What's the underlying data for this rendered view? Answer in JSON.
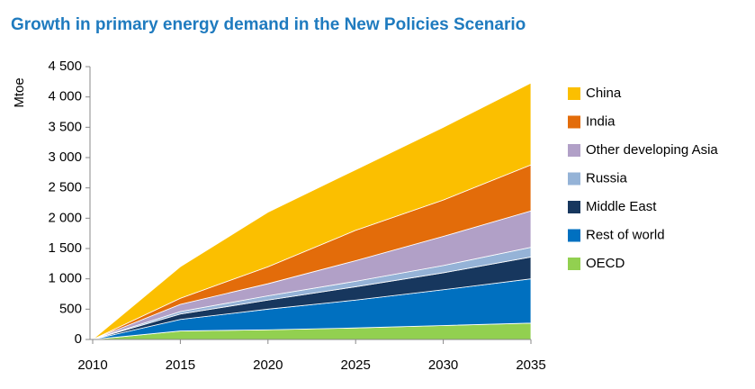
{
  "chart_data": {
    "type": "stacked-area",
    "title": "Growth in primary energy demand in the New Policies Scenario",
    "y_label": "Mtoe",
    "x": [
      2010,
      2015,
      2020,
      2025,
      2030,
      2035
    ],
    "xlim": [
      2010,
      2035
    ],
    "xticks": [
      2010,
      2015,
      2020,
      2025,
      2030,
      2035
    ],
    "ylim": [
      0,
      4500
    ],
    "yticks": [
      0,
      500,
      {
        "value": 1000,
        "label": "1 000"
      },
      {
        "value": 1500,
        "label": "1 500"
      },
      {
        "value": 2000,
        "label": "2 000"
      },
      {
        "value": 2500,
        "label": "2 500"
      },
      {
        "value": 3000,
        "label": "3 000"
      },
      {
        "value": 3500,
        "label": "3 500"
      },
      {
        "value": 4000,
        "label": "4 000"
      },
      {
        "value": 4500,
        "label": "4 500"
      }
    ],
    "series": [
      {
        "name": "China",
        "color": "#fbbf00",
        "values": [
          0,
          520,
          900,
          1000,
          1200,
          1350
        ]
      },
      {
        "name": "India",
        "color": "#e36c0a",
        "values": [
          0,
          100,
          280,
          500,
          600,
          760
        ]
      },
      {
        "name": "Other developing Asia",
        "color": "#b1a0c7",
        "values": [
          0,
          120,
          200,
          340,
          480,
          600
        ]
      },
      {
        "name": "Russia",
        "color": "#95b3d7",
        "values": [
          0,
          40,
          70,
          90,
          120,
          160
        ]
      },
      {
        "name": "Middle East",
        "color": "#17375e",
        "values": [
          0,
          90,
          150,
          220,
          280,
          360
        ]
      },
      {
        "name": "Rest of world",
        "color": "#0070c0",
        "values": [
          0,
          190,
          340,
          460,
          590,
          730
        ]
      },
      {
        "name": "OECD",
        "color": "#92d050",
        "values": [
          0,
          140,
          160,
          190,
          230,
          270
        ]
      }
    ]
  }
}
